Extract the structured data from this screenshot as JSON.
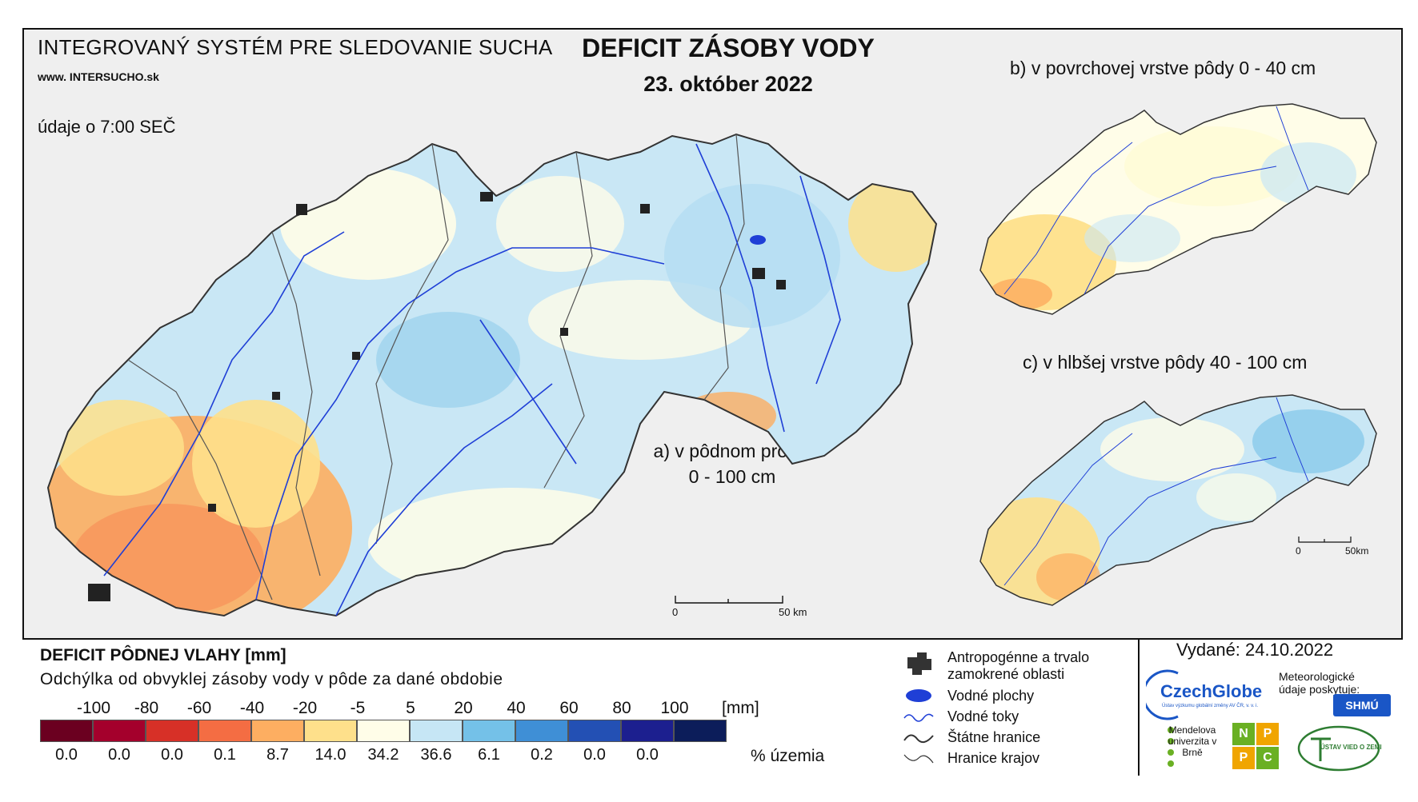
{
  "header": {
    "system_title": "INTEGROVANÝ SYSTÉM PRE SLEDOVANIE SUCHA",
    "website": "www. INTERSUCHO.sk",
    "data_time": "údaje o 7:00 SEČ",
    "title": "DEFICIT ZÁSOBY VODY",
    "date": "23. október 2022"
  },
  "maps": {
    "a_label_line1": "a) v pôdnom profile",
    "a_label_line2": "0 - 100 cm",
    "b_label": "b) v povrchovej vrstve pôdy 0 - 40 cm",
    "c_label": "c) v hlbšej vrstve pôdy 40 - 100 cm",
    "scale_main_zero": "0",
    "scale_main_end": "50 km",
    "scale_small_zero": "0",
    "scale_small_end": "50km"
  },
  "legend": {
    "title": "DEFICIT PÔDNEJ VLAHY [mm]",
    "subtitle": "Odchýlka od obvyklej zásoby vody v pôde za dané obdobie",
    "ticks": [
      "-100",
      "-80",
      "-60",
      "-40",
      "-20",
      "-5",
      "5",
      "20",
      "40",
      "60",
      "80",
      "100"
    ],
    "unit": "[mm]",
    "colors": [
      "#6b0020",
      "#a4002c",
      "#d73027",
      "#f46d43",
      "#fdae61",
      "#fee08b",
      "#fffde8",
      "#c6e6f5",
      "#74c1e8",
      "#3f8fd6",
      "#2350b4",
      "#1c1f8f",
      "#0c1d5a"
    ],
    "percentages": [
      "0.0",
      "0.0",
      "0.0",
      "0.1",
      "8.7",
      "14.0",
      "34.2",
      "36.6",
      "6.1",
      "0.2",
      "0.0",
      "0.0"
    ],
    "percent_label": "% územia"
  },
  "key": {
    "urban": "Antropogénne a trvalo zamokrené oblasti",
    "water_bodies": "Vodné plochy",
    "rivers": "Vodné toky",
    "state_border": "Štátne hranice",
    "regional_border": "Hranice krajov"
  },
  "issued": "Vydané: 24.10.2022",
  "credits": {
    "czechglobe": "CzechGlobe",
    "czechglobe_sub": "Ústav výzkumu globální změny AV ČR, v. v. i.",
    "meteo": "Meteorologické údaje poskytuje:",
    "shmu": "SHMÚ",
    "mendel": "Mendelova univerzita v Brně",
    "nppc": [
      "N",
      "P",
      "P",
      "C"
    ],
    "uvz": "ÚSTAV VIED O ZEMI"
  }
}
